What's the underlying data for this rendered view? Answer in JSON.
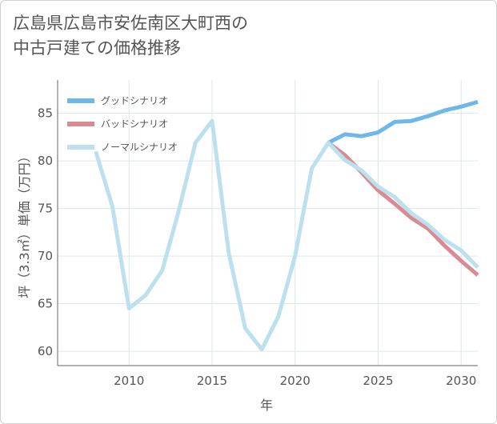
{
  "title": {
    "line1": "広島県広島市安佐南区大町西の",
    "line2": "中古戸建ての価格推移"
  },
  "colors": {
    "good": "#6cb8ec",
    "bad": "#d98a93",
    "normal": "#bde0ee",
    "grid": "#dde6ec",
    "axis": "#666666"
  },
  "chart_data": {
    "type": "line",
    "title": "広島県広島市安佐南区大町西の中古戸建ての価格推移",
    "xlabel": "年",
    "ylabel": "坪（3.3㎡）単価（万円）",
    "xlim": [
      2005.7,
      2031
    ],
    "ylim": [
      58.5,
      88.5
    ],
    "xticks": [
      2010,
      2015,
      2020,
      2025,
      2030
    ],
    "yticks": [
      60,
      65,
      70,
      75,
      80,
      85
    ],
    "legend_position": "top-left",
    "series": [
      {
        "name": "グッドシナリオ",
        "key": "good",
        "x": [
          2022,
          2023,
          2024,
          2025,
          2026,
          2027,
          2028,
          2029,
          2030,
          2031
        ],
        "y": [
          81.9,
          82.8,
          82.6,
          83.0,
          84.1,
          84.2,
          84.7,
          85.3,
          85.7,
          86.2
        ]
      },
      {
        "name": "バッドシナリオ",
        "key": "bad",
        "x": [
          2022,
          2023,
          2024,
          2025,
          2026,
          2027,
          2028,
          2029,
          2030,
          2031
        ],
        "y": [
          81.9,
          80.6,
          78.8,
          76.9,
          75.5,
          74.0,
          72.9,
          71.1,
          69.5,
          68.0
        ]
      },
      {
        "name": "ノーマルシナリオ",
        "key": "normal",
        "x": [
          2008,
          2009,
          2010,
          2011,
          2012,
          2013,
          2014,
          2015,
          2016,
          2017,
          2018,
          2019,
          2020,
          2021,
          2022,
          2023,
          2024,
          2025,
          2026,
          2027,
          2028,
          2029,
          2030,
          2031
        ],
        "y": [
          81.0,
          75.2,
          64.5,
          65.9,
          68.5,
          74.8,
          81.9,
          84.2,
          70.4,
          62.4,
          60.2,
          63.7,
          70.0,
          79.2,
          81.9,
          80.1,
          79.0,
          77.3,
          76.2,
          74.5,
          73.3,
          71.7,
          70.6,
          68.8
        ]
      }
    ]
  }
}
